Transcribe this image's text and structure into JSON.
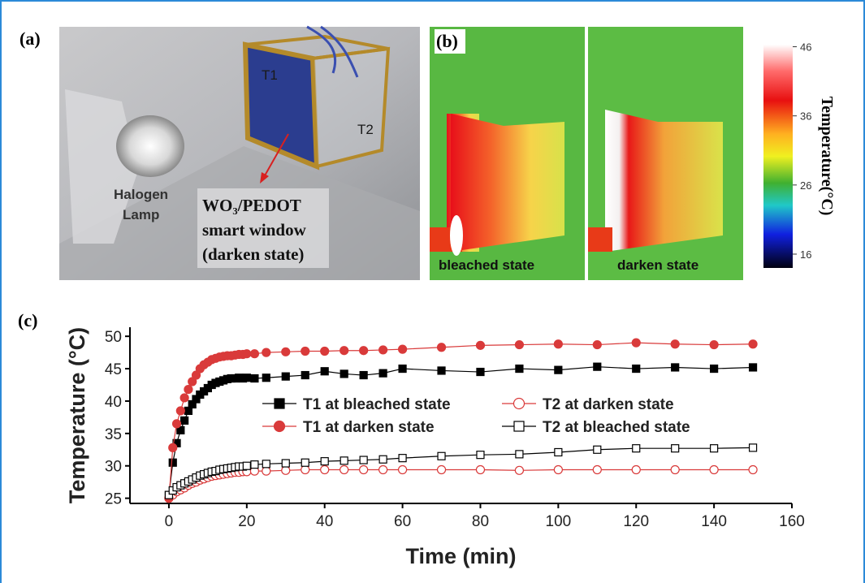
{
  "figure": {
    "panel_a": {
      "label": "(a)",
      "t1": "T1",
      "t2": "T2",
      "lamp_lines": [
        "Halogen",
        "Lamp"
      ],
      "window_lines": [
        "WO₃/PEDOT",
        "smart window",
        "(darken state)"
      ]
    },
    "panel_b": {
      "label": "(b)",
      "images": [
        "bleached state",
        "darken state"
      ],
      "colorbar": {
        "label": "Temperature(°C)",
        "lim": [
          14,
          46.3
        ],
        "ticks": [
          16,
          26,
          36,
          46
        ]
      }
    },
    "panel_c": {
      "label": "(c)"
    }
  },
  "chart_data": {
    "type": "line",
    "xlabel": "Time (min)",
    "ylabel": "Temperature (°C)",
    "x": [
      0,
      1,
      2,
      3,
      4,
      5,
      6,
      7,
      8,
      9,
      10,
      11,
      12,
      13,
      14,
      15,
      16,
      17,
      18,
      19,
      20,
      22,
      25,
      30,
      35,
      40,
      45,
      50,
      55,
      60,
      70,
      80,
      90,
      100,
      110,
      120,
      130,
      140,
      150
    ],
    "xlim": [
      -10,
      160
    ],
    "xticks": [
      0,
      20,
      40,
      60,
      80,
      100,
      120,
      140,
      160
    ],
    "ylim": [
      24.2,
      51.4
    ],
    "yticks": [
      25,
      30,
      35,
      40,
      45,
      50
    ],
    "series": [
      {
        "name": "T1 at bleached state",
        "color": "#000000",
        "marker": "square",
        "filled": true,
        "values": [
          25.5,
          30.5,
          33.5,
          35.5,
          37,
          38.5,
          39.5,
          40.3,
          41,
          41.5,
          42,
          42.5,
          42.8,
          43,
          43.2,
          43.4,
          43.5,
          43.5,
          43.6,
          43.5,
          43.6,
          43.5,
          43.6,
          43.8,
          44,
          44.6,
          44.2,
          44,
          44.3,
          45,
          44.7,
          44.5,
          45,
          44.8,
          45.3,
          45,
          45.2,
          45,
          45.2
        ]
      },
      {
        "name": "T2 at darken state",
        "color": "#d93a3a",
        "marker": "circle",
        "filled": false,
        "values": [
          25,
          25.5,
          26,
          26.3,
          26.6,
          27,
          27.3,
          27.5,
          27.8,
          28,
          28.2,
          28.4,
          28.5,
          28.6,
          28.7,
          28.8,
          28.9,
          29,
          29,
          29.1,
          29.1,
          29.2,
          29.2,
          29.3,
          29.4,
          29.4,
          29.4,
          29.4,
          29.4,
          29.4,
          29.4,
          29.4,
          29.3,
          29.4,
          29.4,
          29.4,
          29.4,
          29.4,
          29.4
        ]
      },
      {
        "name": "T1 at darken state",
        "color": "#d93a3a",
        "marker": "circle",
        "filled": true,
        "values": [
          25,
          32.8,
          36.5,
          38.5,
          40.5,
          41.8,
          43,
          44,
          45,
          45.6,
          46,
          46.4,
          46.6,
          46.8,
          46.9,
          47,
          47,
          47.1,
          47.2,
          47.2,
          47.3,
          47.3,
          47.5,
          47.6,
          47.7,
          47.7,
          47.8,
          47.8,
          47.9,
          48,
          48.3,
          48.6,
          48.7,
          48.8,
          48.7,
          49,
          48.8,
          48.7,
          48.8
        ]
      },
      {
        "name": "T2 at bleached state",
        "color": "#000000",
        "marker": "square",
        "filled": false,
        "values": [
          25.5,
          26.2,
          26.7,
          27,
          27.3,
          27.6,
          27.9,
          28.2,
          28.5,
          28.7,
          28.9,
          29.1,
          29.2,
          29.4,
          29.5,
          29.6,
          29.7,
          29.8,
          29.9,
          29.9,
          30,
          30.2,
          30.3,
          30.4,
          30.5,
          30.7,
          30.8,
          30.9,
          31,
          31.2,
          31.5,
          31.7,
          31.8,
          32.1,
          32.5,
          32.7,
          32.7,
          32.7,
          32.8
        ]
      }
    ]
  }
}
